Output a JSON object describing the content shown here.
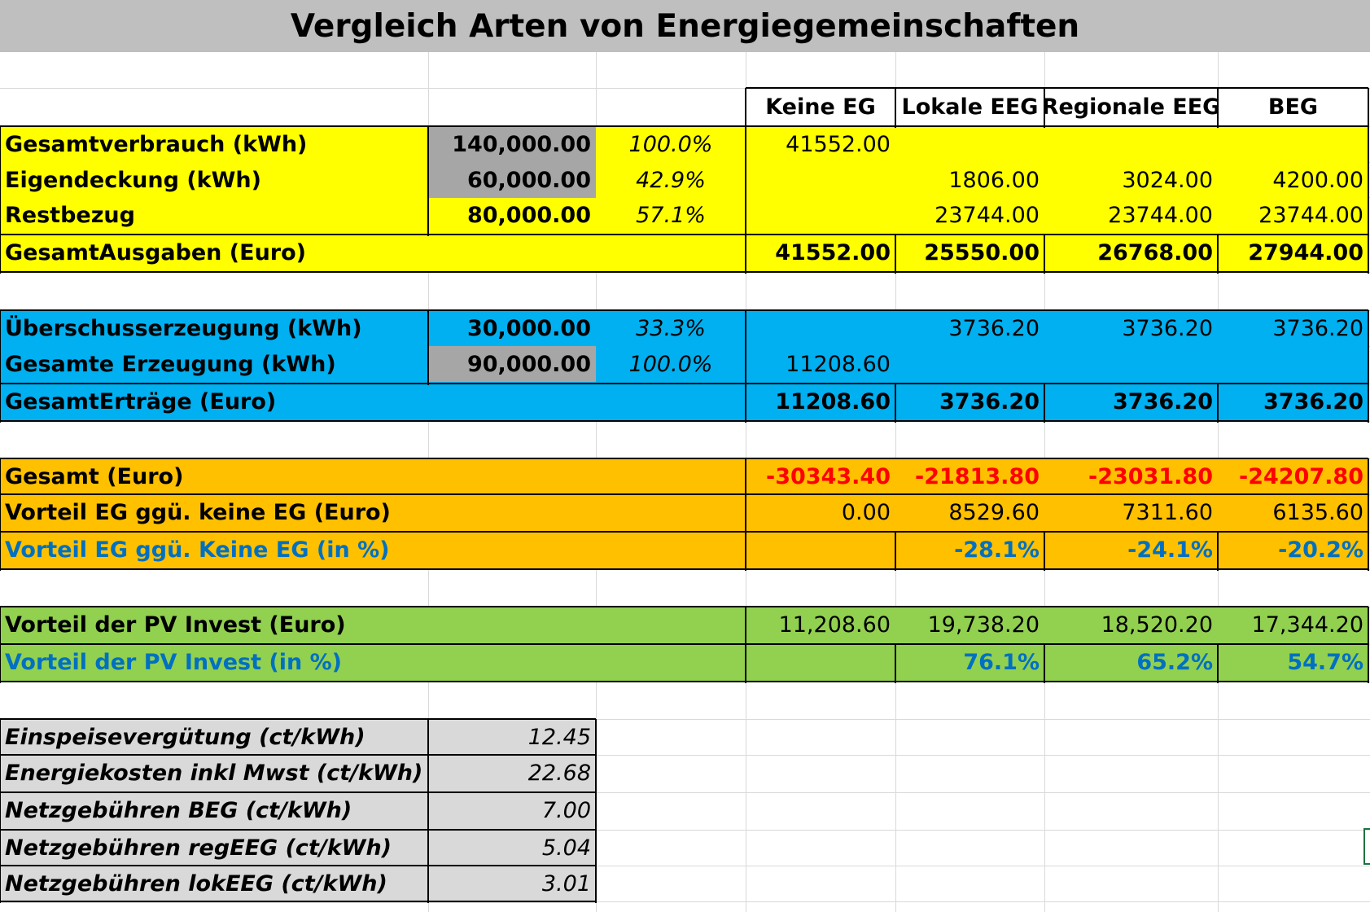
{
  "title": "Vergleich Arten von Energiegemeinschaften",
  "colors": {
    "yellow": "#ffff00",
    "gray": "#a6a6a6",
    "blue": "#00b0f0",
    "orange": "#ffc000",
    "green": "#92d050",
    "lightgray": "#d9d9d9",
    "red": "#ff0000",
    "link_blue": "#0070c0"
  },
  "columns": [
    "Keine EG",
    "Lokale EEG",
    "Regionale EEG",
    "BEG"
  ],
  "consumption": {
    "rows": [
      {
        "label": "Gesamtverbrauch (kWh)",
        "total": "140,000.00",
        "pct": "100.0%",
        "vals": [
          "41552.00",
          "",
          "",
          ""
        ]
      },
      {
        "label": "Eigendeckung (kWh)",
        "total": "60,000.00",
        "pct": "42.9%",
        "vals": [
          "",
          "1806.00",
          "3024.00",
          "4200.00"
        ]
      },
      {
        "label": "Restbezug",
        "total": "80,000.00",
        "pct": "57.1%",
        "vals": [
          "",
          "23744.00",
          "23744.00",
          "23744.00"
        ]
      }
    ],
    "total_row": {
      "label": "GesamtAusgaben (Euro)",
      "vals": [
        "41552.00",
        "25550.00",
        "26768.00",
        "27944.00"
      ]
    }
  },
  "generation": {
    "rows": [
      {
        "label": "Überschusserzeugung (kWh)",
        "total": "30,000.00",
        "pct": "33.3%",
        "vals": [
          "",
          "3736.20",
          "3736.20",
          "3736.20"
        ]
      },
      {
        "label": "Gesamte Erzeugung (kWh)",
        "total": "90,000.00",
        "pct": "100.0%",
        "vals": [
          "11208.60",
          "",
          "",
          ""
        ]
      }
    ],
    "total_row": {
      "label": "GesamtErträge (Euro)",
      "vals": [
        "11208.60",
        "3736.20",
        "3736.20",
        "3736.20"
      ]
    }
  },
  "summary": {
    "rows": [
      {
        "label": "Gesamt (Euro)",
        "vals": [
          "-30343.40",
          "-21813.80",
          "-23031.80",
          "-24207.80"
        ]
      },
      {
        "label": "Vorteil EG ggü. keine EG (Euro)",
        "vals": [
          "0.00",
          "8529.60",
          "7311.60",
          "6135.60"
        ]
      },
      {
        "label": "Vorteil EG ggü. Keine EG (in %)",
        "vals": [
          "",
          "-28.1%",
          "-24.1%",
          "-20.2%"
        ]
      }
    ]
  },
  "pv": {
    "rows": [
      {
        "label": "Vorteil der PV Invest (Euro)",
        "vals": [
          "11,208.60",
          "19,738.20",
          "18,520.20",
          "17,344.20"
        ]
      },
      {
        "label": "Vorteil der PV Invest (in %)",
        "vals": [
          "",
          "76.1%",
          "65.2%",
          "54.7%"
        ]
      }
    ]
  },
  "params": [
    {
      "label": "Einspeisevergütung (ct/kWh)",
      "value": "12.45"
    },
    {
      "label": "Energiekosten inkl Mwst (ct/kWh)",
      "value": "22.68"
    },
    {
      "label": "Netzgebühren BEG (ct/kWh)",
      "value": "7.00"
    },
    {
      "label": "Netzgebühren regEEG (ct/kWh)",
      "value": "5.04"
    },
    {
      "label": "Netzgebühren lokEEG (ct/kWh)",
      "value": "3.01"
    }
  ]
}
